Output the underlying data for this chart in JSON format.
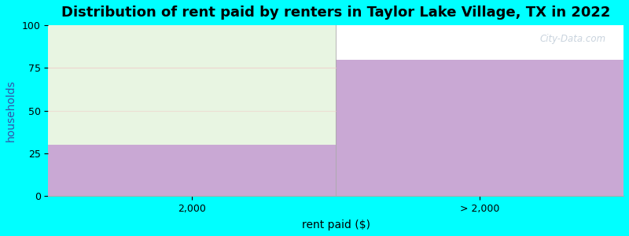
{
  "title": "Distribution of rent paid by renters in Taylor Lake Village, TX in 2022",
  "xlabel": "rent paid ($)",
  "ylabel": "households",
  "categories": [
    "2,000",
    "> 2,000"
  ],
  "bar_purple_values": [
    30,
    80
  ],
  "bar_green_values": [
    70,
    0
  ],
  "bar_purple_color": "#c9a8d4",
  "bar_green_color": "#e8f5e2",
  "background_color": "#00ffff",
  "plot_bg_color": "#ffffff",
  "ylim": [
    0,
    100
  ],
  "yticks": [
    0,
    25,
    50,
    75,
    100
  ],
  "title_fontsize": 13,
  "axis_label_fontsize": 10,
  "tick_fontsize": 9,
  "watermark_text": "City-Data.com",
  "hline_color": "#f0c8c8",
  "hline_y": 75,
  "ylabel_color": "#3355aa"
}
